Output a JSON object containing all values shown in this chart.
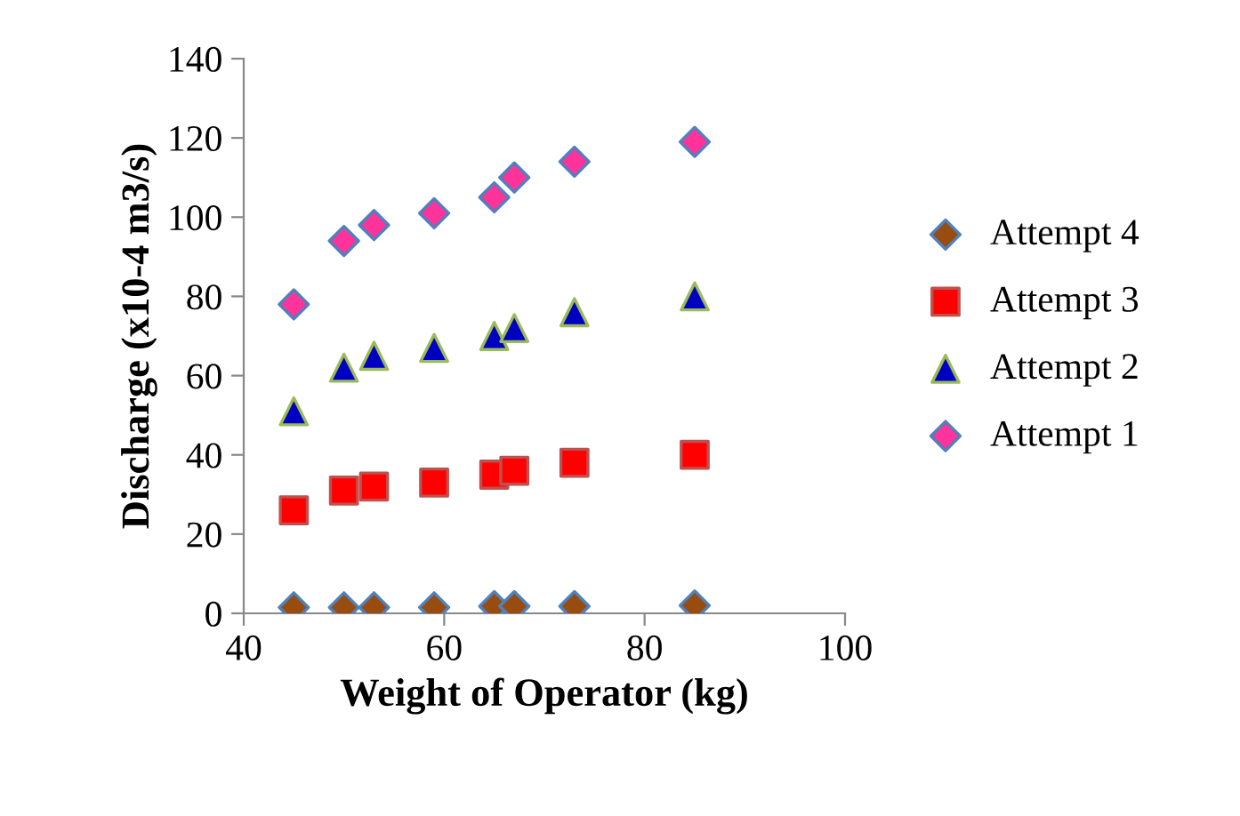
{
  "chart_data": {
    "type": "scatter",
    "xlabel": "Weight of Operator (kg)",
    "ylabel": "Discharge (x10-4 m3/s)",
    "x": [
      45,
      50,
      53,
      59,
      65,
      67,
      73,
      85
    ],
    "series": [
      {
        "name": "Attempt 4",
        "color": "#994c0f",
        "marker": "diamond",
        "values": [
          1.5,
          1.5,
          1.5,
          1.5,
          1.8,
          1.8,
          1.8,
          2
        ]
      },
      {
        "name": "Attempt 3",
        "color": "#ff0000",
        "marker": "square",
        "values": [
          26,
          31,
          32,
          33,
          35,
          36,
          38,
          40
        ]
      },
      {
        "name": "Attempt 2",
        "color": "#0000c0",
        "marker": "triangle",
        "values": [
          51,
          62,
          65,
          67,
          70,
          72,
          76,
          80
        ]
      },
      {
        "name": "Attempt 1",
        "color": "#ff3399",
        "marker": "diamond",
        "values": [
          78,
          94,
          98,
          101,
          105,
          110,
          114,
          119
        ]
      }
    ],
    "xlim": [
      40,
      100
    ],
    "xticks": [
      40,
      60,
      80,
      100
    ],
    "ylim": [
      0,
      140
    ],
    "yticks": [
      0,
      20,
      40,
      60,
      80,
      100,
      120,
      140
    ],
    "grid": false,
    "legend": "right"
  }
}
